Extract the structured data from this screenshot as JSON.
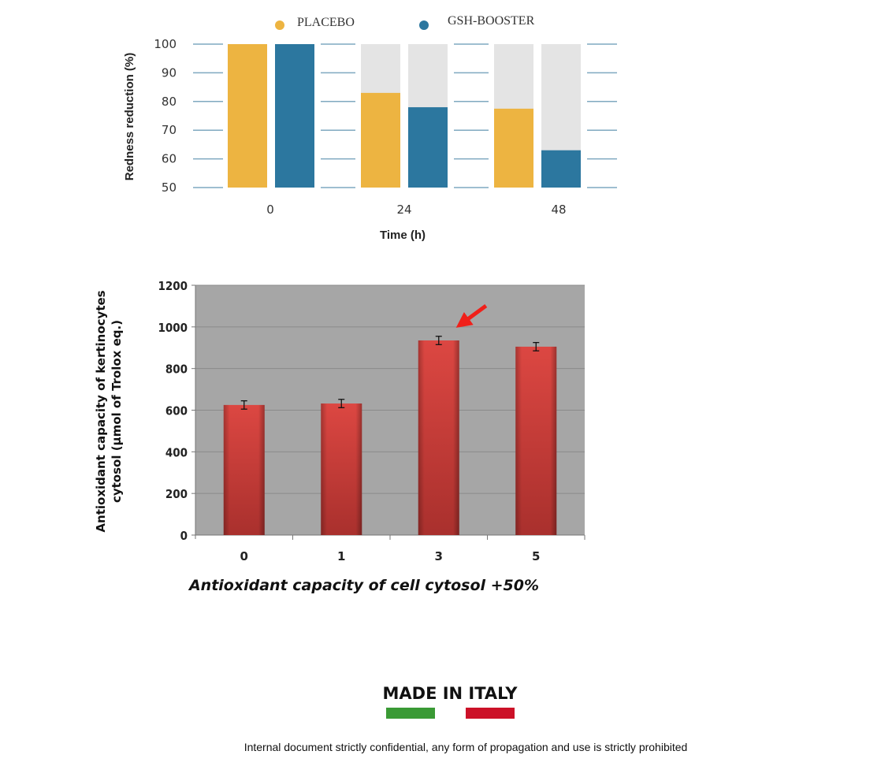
{
  "chart_data": [
    {
      "type": "bar",
      "title": "",
      "xlabel": "Time (h)",
      "ylabel": "Redness reduction (%)",
      "categories": [
        "0",
        "24",
        "48"
      ],
      "ylim": [
        50,
        100
      ],
      "yticks": [
        50,
        60,
        70,
        80,
        90,
        100
      ],
      "legend_position": "top",
      "series": [
        {
          "name": "PLACEBO",
          "color": "#EDB441",
          "values": [
            100,
            83,
            77.5
          ]
        },
        {
          "name": "GSH-BOOSTER",
          "color": "#2C779F",
          "values": [
            100,
            78,
            63
          ]
        }
      ]
    },
    {
      "type": "bar",
      "title": "",
      "xlabel": "Antioxidant capacity of cell cytosol +50%",
      "ylabel": "Antioxidant capacity of kertinocytes cytosol (µmol of Trolox eq.)",
      "ylabel_lines": [
        "Antioxidant capacity of kertinocytes",
        "cytosol (µmol of Trolox eq.)"
      ],
      "categories": [
        "0",
        "1",
        "3",
        "5"
      ],
      "ylim": [
        0,
        1200
      ],
      "yticks": [
        0,
        200,
        400,
        600,
        800,
        1000,
        1200
      ],
      "values": [
        625,
        632,
        935,
        905
      ],
      "errors": [
        20,
        20,
        20,
        20
      ],
      "color": "#D8403D",
      "annotation": "red arrow pointing at bar 3",
      "highlight_index": 2
    }
  ],
  "footer": {
    "made_in": "MADE IN ITALY",
    "flag_colors": [
      "#3A9A35",
      "#CC1128"
    ],
    "confidential": "Internal document strictly confidential, any form of propagation and use is strictly prohibited"
  }
}
